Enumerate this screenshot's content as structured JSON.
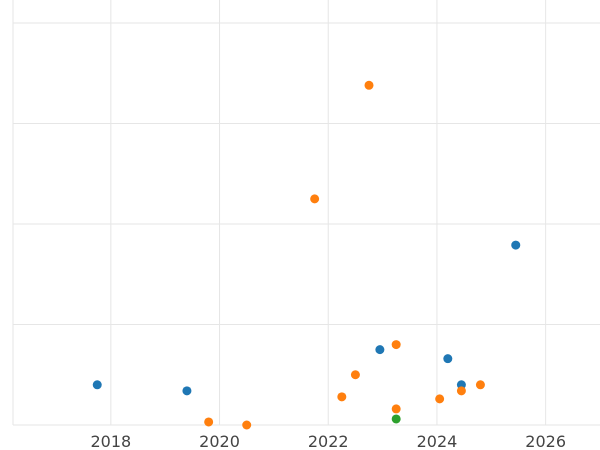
{
  "chart_data": {
    "type": "scatter",
    "title": "",
    "xlabel": "",
    "ylabel": "",
    "xlim": [
      2016.2,
      2027.0
    ],
    "ylim": [
      0,
      400
    ],
    "x_ticks": [
      2018,
      2020,
      2022,
      2024,
      2026
    ],
    "x_tick_labels": [
      "2018",
      "2020",
      "2022",
      "2024",
      "2026"
    ],
    "y_gridlines": [
      0,
      100,
      200,
      300,
      400
    ],
    "grid": true,
    "legend": "none",
    "series": [
      {
        "color": "#1f77b4",
        "points": [
          {
            "x": 2017.75,
            "y": 40
          },
          {
            "x": 2019.4,
            "y": 34
          },
          {
            "x": 2022.95,
            "y": 75
          },
          {
            "x": 2024.2,
            "y": 66
          },
          {
            "x": 2024.45,
            "y": 40
          },
          {
            "x": 2025.45,
            "y": 179
          }
        ]
      },
      {
        "color": "#ff7f0e",
        "points": [
          {
            "x": 2019.8,
            "y": 3
          },
          {
            "x": 2020.5,
            "y": 0
          },
          {
            "x": 2021.75,
            "y": 225
          },
          {
            "x": 2022.25,
            "y": 28
          },
          {
            "x": 2022.5,
            "y": 50
          },
          {
            "x": 2022.75,
            "y": 338
          },
          {
            "x": 2023.25,
            "y": 80
          },
          {
            "x": 2023.25,
            "y": 16
          },
          {
            "x": 2024.05,
            "y": 26
          },
          {
            "x": 2024.45,
            "y": 34
          },
          {
            "x": 2024.8,
            "y": 40
          }
        ]
      },
      {
        "color": "#2ca02c",
        "points": [
          {
            "x": 2023.25,
            "y": 6
          }
        ]
      }
    ]
  }
}
